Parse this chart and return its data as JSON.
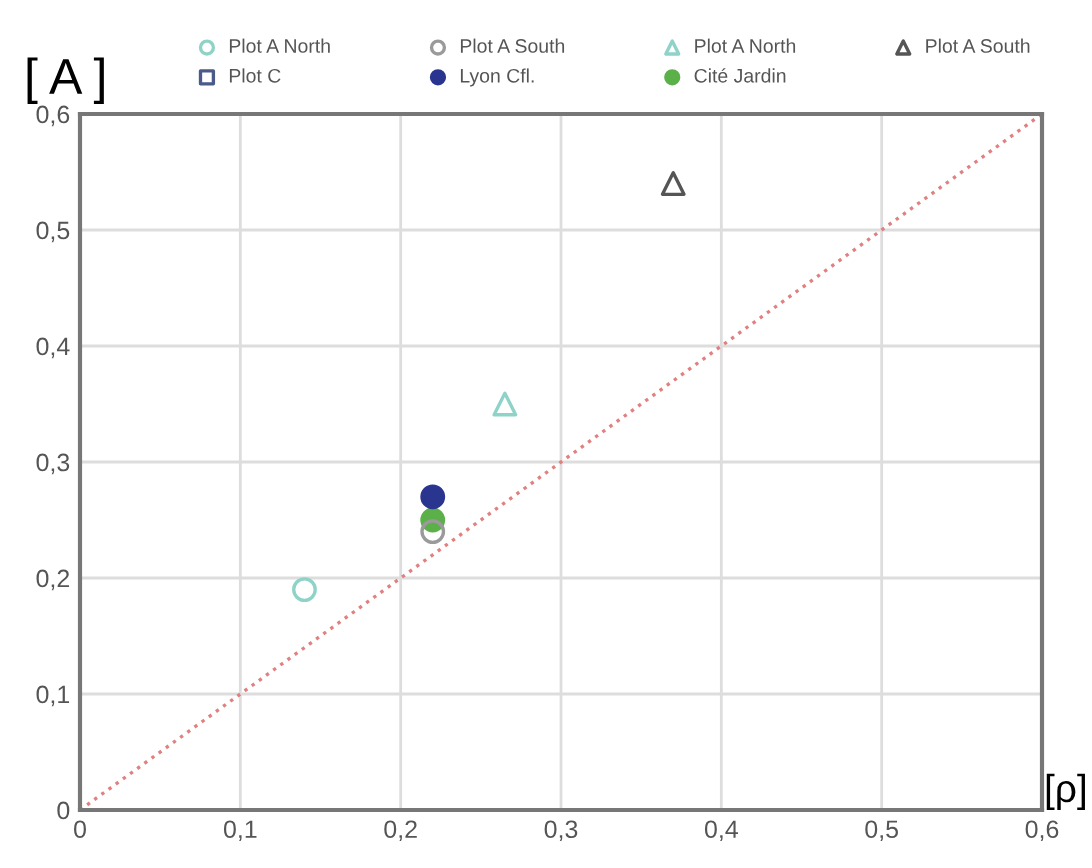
{
  "chart_data": {
    "type": "scatter",
    "xlabel": "[ρ]",
    "ylabel": "[ A ]",
    "xlim": [
      0,
      0.6
    ],
    "ylim": [
      0,
      0.6
    ],
    "xticks": [
      0,
      {
        "value": 0.1,
        "label": "0,1"
      },
      {
        "value": 0.2,
        "label": "0,2"
      },
      {
        "value": 0.3,
        "label": "0,3"
      },
      {
        "value": 0.4,
        "label": "0,4"
      },
      {
        "value": 0.5,
        "label": "0,5"
      },
      {
        "value": 0.6,
        "label": "0,6"
      }
    ],
    "yticks": [
      0,
      {
        "value": 0.1,
        "label": "0,1"
      },
      {
        "value": 0.2,
        "label": "0,2"
      },
      {
        "value": 0.3,
        "label": "0,3"
      },
      {
        "value": 0.4,
        "label": "0,4"
      },
      {
        "value": 0.5,
        "label": "0,5"
      },
      {
        "value": 0.6,
        "label": "0,6"
      }
    ],
    "grid": true,
    "legend": "top",
    "series": [
      {
        "name": "Plot A North",
        "color": "#8fd3c8",
        "marker": "circle",
        "x": [
          0.14
        ],
        "values": [
          0.19
        ]
      },
      {
        "name": "Plot A South",
        "color": "#9a9a9a",
        "marker": "circle",
        "x": [
          0.22
        ],
        "values": [
          0.24
        ]
      },
      {
        "name": "Plot A North",
        "color": "#8fd3c8",
        "marker": "triangle",
        "x": [
          0.265
        ],
        "values": [
          0.35
        ]
      },
      {
        "name": "Plot A South",
        "color": "#555555",
        "marker": "triangle",
        "x": [
          0.37
        ],
        "values": [
          0.54
        ]
      },
      {
        "name": "Plot C",
        "color": "#4a5a8a",
        "marker": "square"
      },
      {
        "name": "Lyon Cfl.",
        "color": "#2a3590",
        "marker": "circle",
        "x": [
          0.22
        ],
        "values": [
          0.27
        ]
      },
      {
        "name": "Cité Jardin",
        "color": "#5cb04a",
        "marker": "circle",
        "x": [
          0.22
        ],
        "values": [
          0.25
        ]
      },
      {
        "type": "line",
        "color": "#e08080",
        "line_style": "dotted",
        "marker": "none",
        "x": [
          0,
          0.6
        ],
        "values": [
          0,
          0.6
        ]
      }
    ]
  }
}
